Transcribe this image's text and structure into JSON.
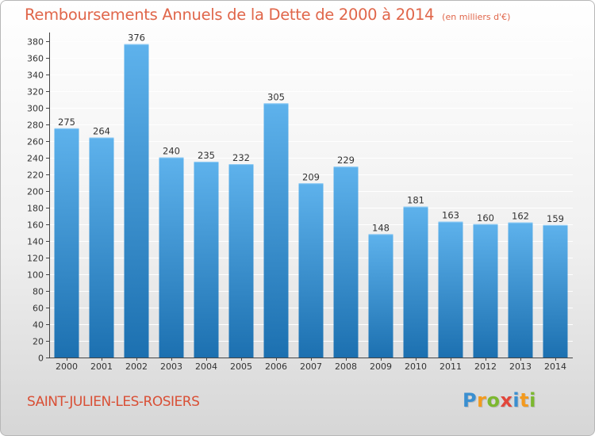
{
  "header": {
    "title": "Remboursements Annuels de la Dette de 2000 à 2014",
    "unit": "(en milliers d'€)"
  },
  "footer": {
    "commune": "SAINT-JULIEN-LES-ROSIERS",
    "logo": {
      "text": "Proxiti",
      "letters": [
        {
          "char": "P",
          "color": "#3a8fd0"
        },
        {
          "char": "r",
          "color": "#f39a1e"
        },
        {
          "char": "o",
          "color": "#7cb82f"
        },
        {
          "char": "x",
          "color": "#e2463b"
        },
        {
          "char": "i",
          "color": "#3a8fd0"
        },
        {
          "char": "t",
          "color": "#f39a1e"
        },
        {
          "char": "i",
          "color": "#7cb82f"
        }
      ]
    }
  },
  "colors": {
    "bar_top": "#5eb2ec",
    "bar_bottom": "#1c70b0",
    "title": "#e0664a",
    "commune": "#d94f35",
    "grid": "#ffffff"
  },
  "chart_data": {
    "type": "bar",
    "title": "Remboursements Annuels de la Dette de 2000 à 2014",
    "subtitle": "(en milliers d'€)",
    "xlabel": "",
    "ylabel": "",
    "categories": [
      "2000",
      "2001",
      "2002",
      "2003",
      "2004",
      "2005",
      "2006",
      "2007",
      "2008",
      "2009",
      "2010",
      "2011",
      "2012",
      "2013",
      "2014"
    ],
    "values": [
      275,
      264,
      376,
      240,
      235,
      232,
      305,
      209,
      229,
      148,
      181,
      163,
      160,
      162,
      159
    ],
    "ylim": [
      0,
      380
    ],
    "ytick_step": 20,
    "grid": true,
    "legend": "none"
  }
}
